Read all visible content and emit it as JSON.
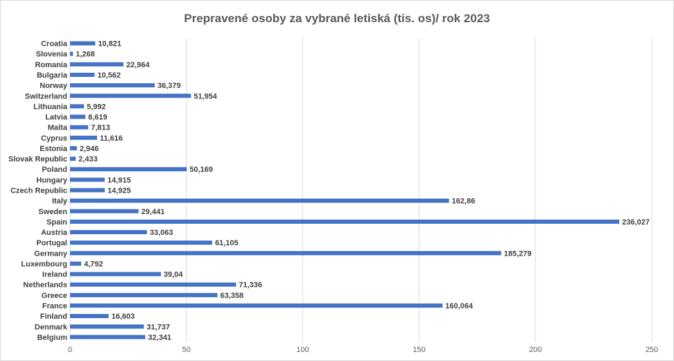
{
  "chart_data": {
    "type": "bar",
    "orientation": "horizontal",
    "title": "Prepravené osoby za vybrané letiská (tis. os)/ rok 2023",
    "xlabel": "",
    "ylabel": "",
    "xlim": [
      0,
      250
    ],
    "xticks": [
      "0",
      "50",
      "100",
      "150",
      "200",
      "250"
    ],
    "grid": "vertical",
    "bar_color": "#4472c4",
    "categories": [
      "Croatia",
      "Slovenia",
      "Romania",
      "Bulgaria",
      "Norway",
      "Switzerland",
      "Lithuania",
      "Latvia",
      "Malta",
      "Cyprus",
      "Estonia",
      "Slovak Republic",
      "Poland",
      "Hungary",
      "Czech Republic",
      "Italy",
      "Sweden",
      "Spain",
      "Austria",
      "Portugal",
      "Germany",
      "Luxembourg",
      "Ireland",
      "Netherlands",
      "Greece",
      "France",
      "Finland",
      "Denmark",
      "Belgium"
    ],
    "values": [
      10.821,
      1.268,
      22.964,
      10.562,
      36.379,
      51.954,
      5.992,
      6.619,
      7.813,
      11.616,
      2.946,
      2.433,
      50.169,
      14.915,
      14.925,
      162.86,
      29.441,
      236.027,
      33.063,
      61.105,
      185.279,
      4.792,
      39.04,
      71.336,
      63.358,
      160.064,
      16.603,
      31.737,
      32.341
    ],
    "labels": [
      "10,821",
      "1,268",
      "22,964",
      "10,562",
      "36,379",
      "51,954",
      "5,992",
      "6,619",
      "7,813",
      "11,616",
      "2,946",
      "2,433",
      "50,169",
      "14,915",
      "14,925",
      "162,86",
      "29,441",
      "236,027",
      "33,063",
      "61,105",
      "185,279",
      "4,792",
      "39,04",
      "71,336",
      "63,358",
      "160,064",
      "16,603",
      "31,737",
      "32,341"
    ]
  }
}
